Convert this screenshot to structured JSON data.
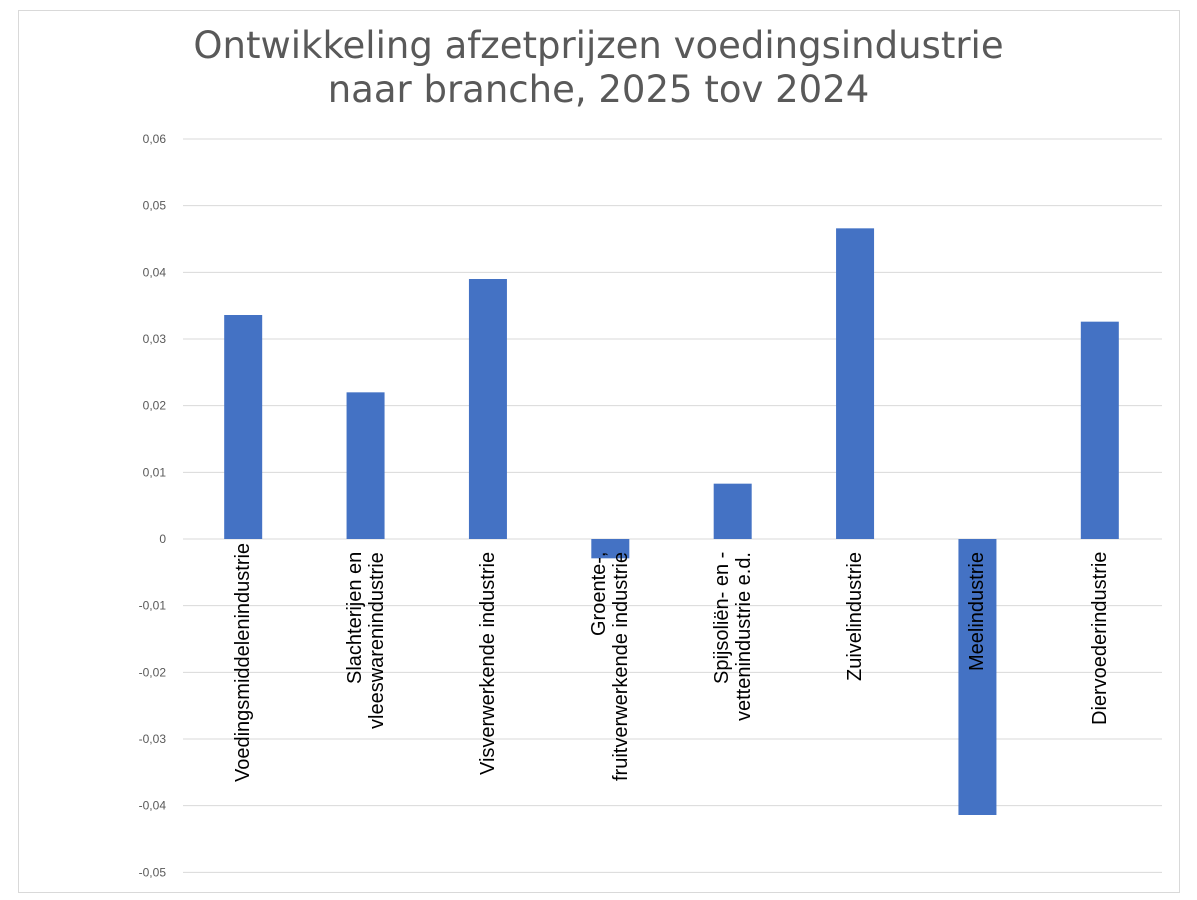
{
  "chart_data": {
    "type": "bar",
    "title_lines": [
      "Ontwikkeling afzetprijzen voedingsindustrie",
      "naar branche, 2025 tov 2024"
    ],
    "categories": [
      "Voedingsmiddelenindustrie",
      "Slachterijen en vleeswarenindustrie",
      "Visverwerkende industrie",
      "Groente-, fruitverwerkende industrie",
      "Spijsoliën- en -vettenindustrie e.d.",
      "Zuivelindustrie",
      "Meelindustrie",
      "Diervoederindustrie"
    ],
    "values": [
      0.0336,
      0.022,
      0.039,
      -0.0029,
      0.0083,
      0.0466,
      -0.0414,
      0.0326
    ],
    "ylim": [
      -0.05,
      0.06
    ],
    "yticks": [
      0.06,
      0.05,
      0.04,
      0.03,
      0.02,
      0.01,
      0,
      -0.01,
      -0.02,
      -0.03,
      -0.04,
      -0.05
    ],
    "ytick_labels": [
      "0,06",
      "0,05",
      "0,04",
      "0,03",
      "0,02",
      "0,01",
      "0",
      "-0,01",
      "-0,02",
      "-0,03",
      "-0,04",
      "-0,05"
    ],
    "grid": true,
    "legend": "none",
    "bar_color": "#4472c4"
  }
}
